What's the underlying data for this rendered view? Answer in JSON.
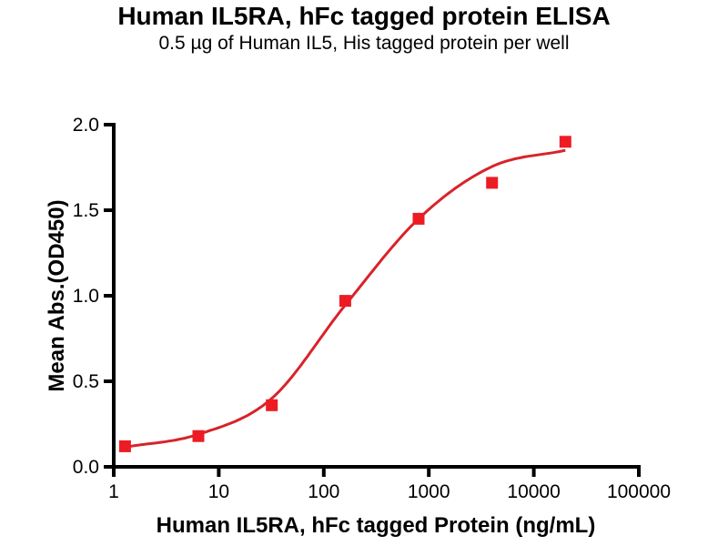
{
  "figure": {
    "title": "Human IL5RA, hFc tagged protein ELISA",
    "subtitle": "0.5 µg of Human IL5, His tagged protein per well"
  },
  "chart_data": {
    "type": "scatter",
    "title": "Human IL5RA, hFc tagged protein ELISA",
    "subtitle": "0.5 µg of Human IL5, His tagged protein per well",
    "xlabel": "Human IL5RA, hFc tagged Protein (ng/mL)",
    "ylabel": "Mean Abs.(OD450)",
    "x_scale": "log10",
    "xlim": [
      1,
      100000
    ],
    "ylim": [
      0,
      2
    ],
    "grid": false,
    "legend": "none",
    "x_ticks": {
      "values": [
        1,
        10,
        100,
        1000,
        10000,
        100000
      ],
      "labels": [
        "1",
        "10",
        "100",
        "1000",
        "10000",
        "100000"
      ]
    },
    "y_ticks": {
      "values": [
        0,
        0.5,
        1,
        1.5,
        2
      ],
      "labels": [
        "0.0",
        "0.5",
        "1.0",
        "1.5",
        "2.0"
      ]
    },
    "series": [
      {
        "name": "Human IL5RA, hFc tagged protein",
        "marker": "square",
        "color": "#ed1c24",
        "x": [
          1.28,
          6.4,
          32,
          160,
          800,
          4000,
          20000
        ],
        "y": [
          0.12,
          0.18,
          0.36,
          0.97,
          1.45,
          1.66,
          1.9
        ]
      }
    ],
    "fit_curve": {
      "type": "4PL-sigmoid",
      "color": "#d8232a",
      "points": [
        [
          1.28,
          0.115
        ],
        [
          6.4,
          0.19
        ],
        [
          32,
          0.4
        ],
        [
          160,
          0.945
        ],
        [
          800,
          1.45
        ],
        [
          4000,
          1.755
        ],
        [
          20000,
          1.85
        ]
      ]
    }
  },
  "colors": {
    "marker_red": "#ed1c24",
    "curve_red": "#d8232a",
    "axis_black": "#000000",
    "background": "#ffffff"
  }
}
